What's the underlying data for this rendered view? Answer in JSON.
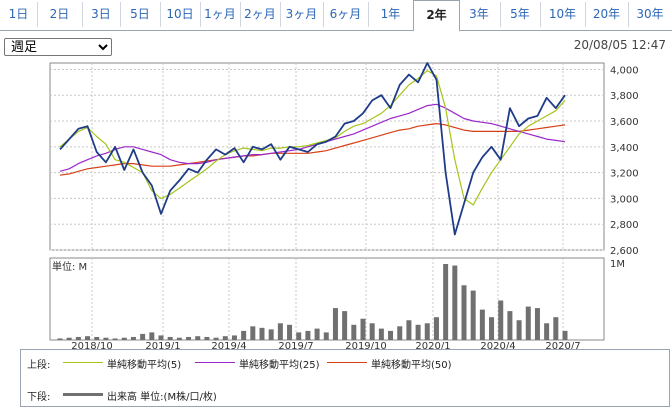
{
  "tabs": [
    "1日",
    "2日",
    "3日",
    "5日",
    "10日",
    "1ヶ月",
    "2ヶ月",
    "3ヶ月",
    "6ヶ月",
    "1年",
    "2年",
    "3年",
    "5年",
    "10年",
    "20年",
    "30年"
  ],
  "active_tab_index": 10,
  "period_select": {
    "value": "週足",
    "options": [
      "週足"
    ]
  },
  "timestamp": "20/08/05 12:47",
  "legend": {
    "upper_label": "上段:",
    "lower_label": "下段:",
    "ma5": "単純移動平均(5)",
    "ma25": "単純移動平均(25)",
    "ma50": "単純移動平均(50)",
    "volume": "出来高 単位:(M株/口/枚)"
  },
  "colors": {
    "price": "#1f3c88",
    "ma5": "#a6c41c",
    "ma25": "#9b27c9",
    "ma50": "#d84116",
    "volume": "#707070",
    "grid": "#c8c8c8"
  },
  "chart_data": {
    "type": "line",
    "x_tick_labels": [
      "2018/10",
      "2019/1",
      "2019/4",
      "2019/7",
      "2019/10",
      "2020/1",
      "2020/4",
      "2020/7"
    ],
    "price_axis": {
      "ylim": [
        2600,
        4050
      ],
      "ticks": [
        "4,000",
        "3,800",
        "3,600",
        "3,400",
        "3,200",
        "3,000",
        "2,800",
        "2,600"
      ]
    },
    "volume_axis": {
      "unit_label": "単位: M",
      "top_label": "1M",
      "ylim": [
        0,
        1
      ]
    },
    "series": [
      {
        "name": "単純移動平均(5)",
        "values": [
          3400,
          3460,
          3520,
          3550,
          3480,
          3420,
          3300,
          3280,
          3240,
          3200,
          3060,
          3000,
          3030,
          3080,
          3130,
          3180,
          3230,
          3290,
          3340,
          3370,
          3390,
          3380,
          3370,
          3390,
          3390,
          3400,
          3400,
          3410,
          3430,
          3450,
          3470,
          3520,
          3560,
          3580,
          3620,
          3660,
          3720,
          3800,
          3880,
          3930,
          3990,
          3950,
          3700,
          3300,
          3000,
          2950,
          3080,
          3200,
          3300,
          3400,
          3500,
          3560,
          3600,
          3640,
          3680,
          3760
        ]
      },
      {
        "name": "単純移動平均(25)",
        "values": [
          3210,
          3230,
          3270,
          3300,
          3330,
          3350,
          3380,
          3400,
          3400,
          3380,
          3360,
          3340,
          3300,
          3280,
          3270,
          3270,
          3280,
          3300,
          3310,
          3320,
          3330,
          3340,
          3340,
          3350,
          3360,
          3370,
          3380,
          3400,
          3420,
          3440,
          3460,
          3480,
          3500,
          3530,
          3560,
          3590,
          3620,
          3640,
          3660,
          3690,
          3720,
          3730,
          3700,
          3660,
          3620,
          3600,
          3590,
          3580,
          3560,
          3540,
          3520,
          3500,
          3480,
          3460,
          3450,
          3440
        ]
      },
      {
        "name": "単純移動平均(50)",
        "values": [
          3180,
          3190,
          3210,
          3230,
          3240,
          3250,
          3260,
          3270,
          3270,
          3260,
          3250,
          3250,
          3250,
          3260,
          3270,
          3280,
          3290,
          3300,
          3310,
          3320,
          3330,
          3330,
          3340,
          3350,
          3350,
          3350,
          3350,
          3350,
          3360,
          3370,
          3390,
          3410,
          3430,
          3450,
          3470,
          3490,
          3510,
          3530,
          3540,
          3560,
          3570,
          3580,
          3570,
          3550,
          3530,
          3520,
          3520,
          3520,
          3520,
          3520,
          3520,
          3530,
          3540,
          3550,
          3560,
          3570
        ]
      },
      {
        "name": "price",
        "values": [
          3380,
          3460,
          3540,
          3560,
          3360,
          3280,
          3400,
          3220,
          3380,
          3200,
          3100,
          2880,
          3060,
          3140,
          3230,
          3200,
          3300,
          3380,
          3340,
          3390,
          3280,
          3400,
          3380,
          3420,
          3300,
          3400,
          3380,
          3360,
          3420,
          3440,
          3480,
          3580,
          3600,
          3660,
          3760,
          3800,
          3700,
          3880,
          3960,
          3900,
          4050,
          3920,
          3200,
          2720,
          2960,
          3200,
          3320,
          3400,
          3300,
          3700,
          3560,
          3620,
          3640,
          3780,
          3700,
          3800
        ]
      },
      {
        "name": "volume",
        "values": [
          0.02,
          0.03,
          0.04,
          0.05,
          0.04,
          0.03,
          0.02,
          0.03,
          0.04,
          0.08,
          0.1,
          0.06,
          0.04,
          0.03,
          0.04,
          0.05,
          0.04,
          0.03,
          0.05,
          0.06,
          0.12,
          0.18,
          0.16,
          0.14,
          0.22,
          0.2,
          0.1,
          0.12,
          0.15,
          0.1,
          0.42,
          0.38,
          0.2,
          0.28,
          0.22,
          0.15,
          0.12,
          0.18,
          0.26,
          0.2,
          0.22,
          0.3,
          1.0,
          0.98,
          0.72,
          0.65,
          0.4,
          0.3,
          0.52,
          0.38,
          0.26,
          0.44,
          0.42,
          0.22,
          0.3,
          0.12
        ]
      }
    ]
  }
}
